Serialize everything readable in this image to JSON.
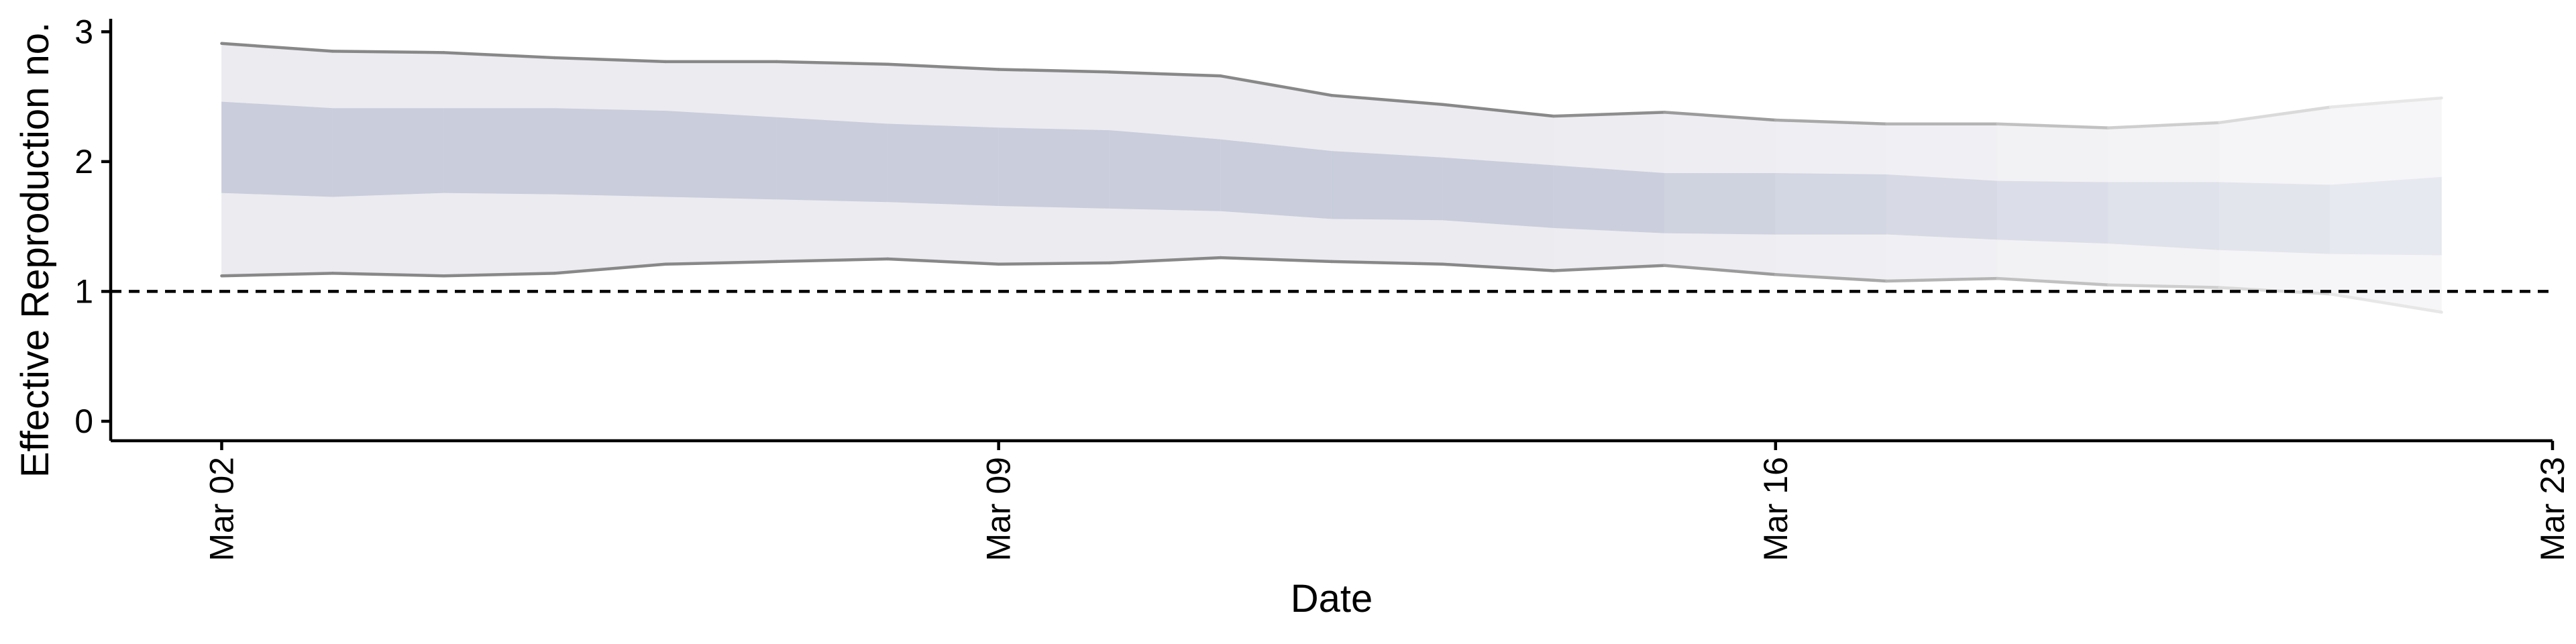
{
  "chart_data": {
    "type": "area",
    "title": "",
    "xlabel": "Date",
    "ylabel": "Effective Reproduction no.",
    "x_ticks": [
      "Mar 02",
      "Mar 09",
      "Mar 16",
      "Mar 23"
    ],
    "x_tick_days": [
      0,
      7,
      14,
      21
    ],
    "y_ticks": [
      0,
      1,
      2,
      3
    ],
    "xlim_days": [
      -1,
      21
    ],
    "ylim": [
      -0.15,
      3.1
    ],
    "grid": false,
    "reference_line": {
      "y": 1,
      "style": "dashed"
    },
    "days": [
      0,
      1,
      2,
      3,
      4,
      5,
      6,
      7,
      8,
      9,
      10,
      11,
      12,
      13,
      14,
      15,
      16,
      17,
      18,
      19,
      20
    ],
    "outer_upper": [
      2.91,
      2.85,
      2.84,
      2.8,
      2.77,
      2.77,
      2.75,
      2.71,
      2.69,
      2.66,
      2.51,
      2.44,
      2.35,
      2.38,
      2.32,
      2.29,
      2.29,
      2.26,
      2.3,
      2.42,
      2.49
    ],
    "outer_lower": [
      1.12,
      1.14,
      1.12,
      1.14,
      1.21,
      1.23,
      1.25,
      1.21,
      1.22,
      1.26,
      1.23,
      1.21,
      1.16,
      1.2,
      1.13,
      1.08,
      1.1,
      1.05,
      1.03,
      0.98,
      0.84
    ],
    "inner_upper": [
      2.46,
      2.41,
      2.41,
      2.41,
      2.39,
      2.34,
      2.29,
      2.26,
      2.24,
      2.17,
      2.08,
      2.03,
      1.97,
      1.91,
      1.91,
      1.9,
      1.85,
      1.84,
      1.84,
      1.82,
      1.88
    ],
    "inner_lower": [
      1.76,
      1.73,
      1.76,
      1.75,
      1.73,
      1.71,
      1.69,
      1.66,
      1.64,
      1.62,
      1.56,
      1.55,
      1.49,
      1.45,
      1.44,
      1.44,
      1.4,
      1.37,
      1.32,
      1.29,
      1.28
    ],
    "colors": {
      "outer_band": "#ebebf0",
      "inner_band": "#c9cddc",
      "ci_line": "#888888",
      "reference_line": "#000000"
    }
  }
}
